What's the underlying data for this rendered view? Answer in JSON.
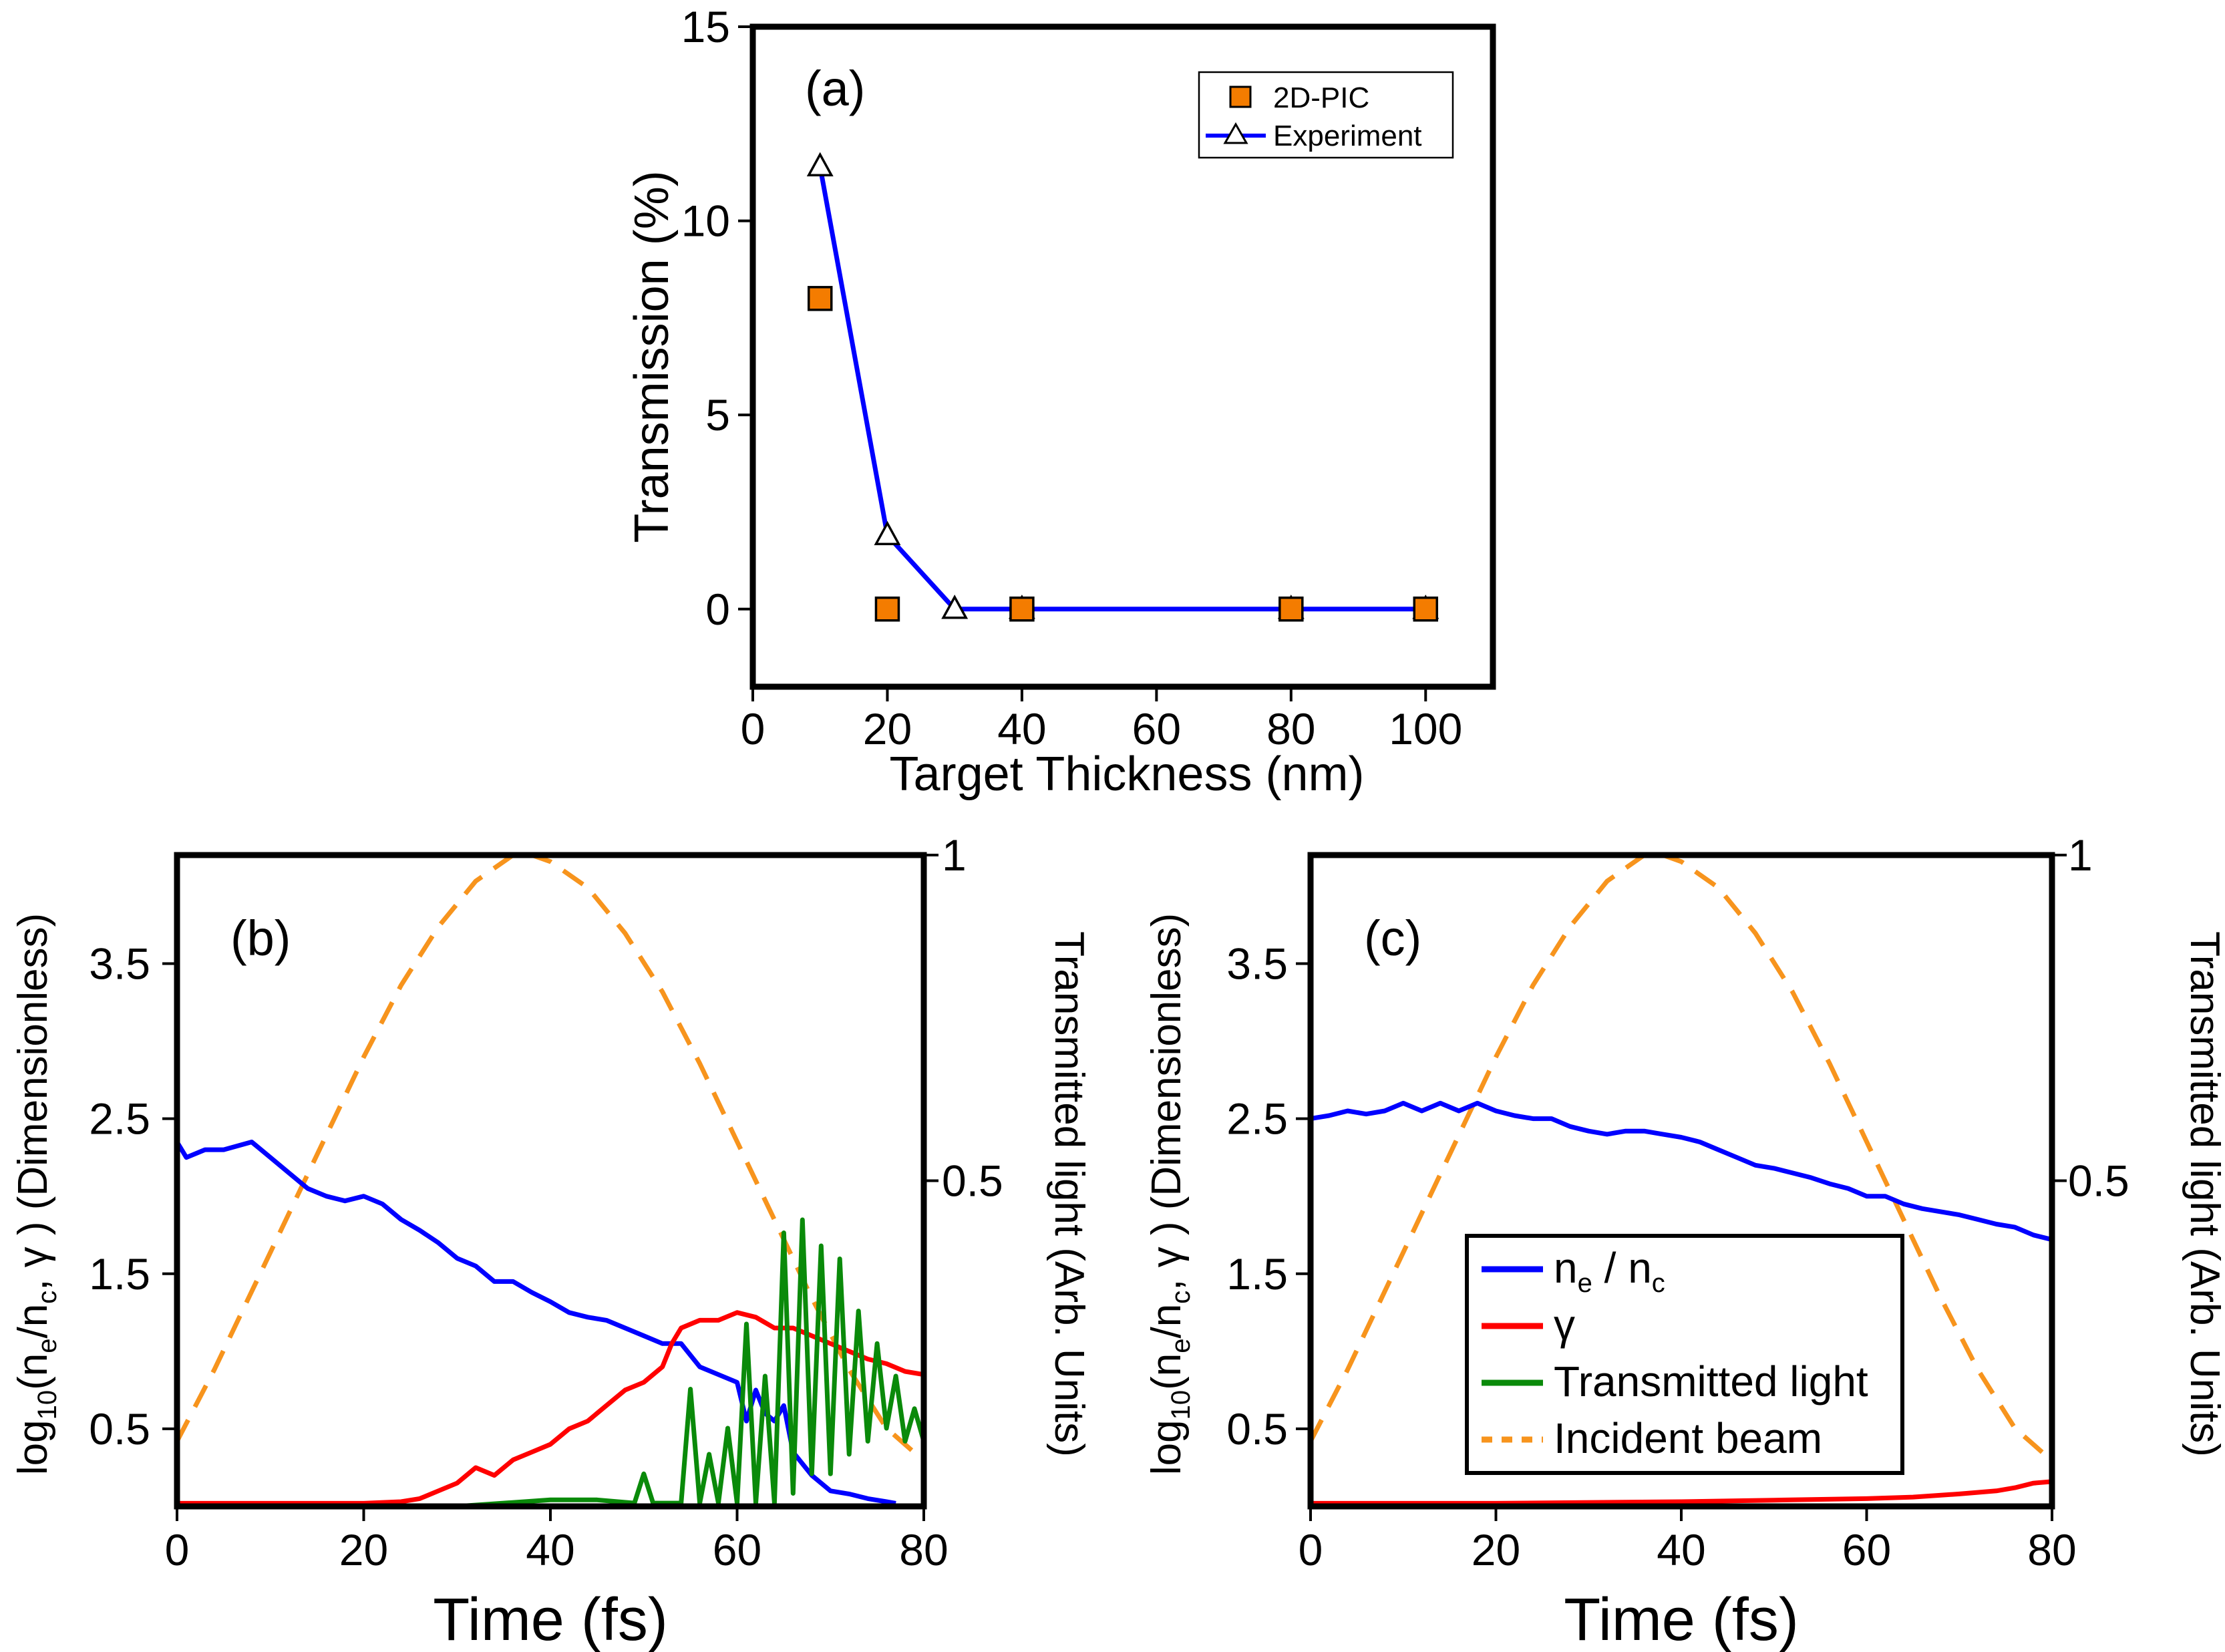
{
  "colors": {
    "frame": "#000000",
    "blue": "#0000ff",
    "red": "#ff0000",
    "green": "#0a8a0a",
    "orange": "#f7941d",
    "marker_fill": "#f47c00"
  },
  "chart_data": [
    {
      "id": "a",
      "type": "line",
      "panel_label": "(a)",
      "xlabel": "Target Thickness (nm)",
      "ylabel": "Transmission (%)",
      "xlim": [
        0,
        110
      ],
      "ylim": [
        -2,
        15
      ],
      "xticks": [
        0,
        20,
        40,
        60,
        80,
        100
      ],
      "yticks": [
        0,
        5,
        10,
        15
      ],
      "legend_position": "top-right",
      "series": [
        {
          "name": "2D-PIC",
          "style": "markers-square",
          "x": [
            10,
            20,
            40,
            80,
            100
          ],
          "y": [
            8,
            0,
            0,
            0,
            0
          ]
        },
        {
          "name": "Experiment",
          "style": "line-triangles",
          "x": [
            10,
            20,
            30,
            40,
            80,
            100
          ],
          "y": [
            11.4,
            1.9,
            0,
            0,
            0,
            0
          ]
        }
      ]
    },
    {
      "id": "b",
      "type": "line",
      "panel_label": "(b)",
      "xlabel": "Time (fs)",
      "ylabel_left": "log10(ne/nc, γ) (Dimensionless)",
      "ylabel_right": "Transmitted light (Arb. Units)",
      "xlim": [
        0,
        80
      ],
      "ylim_left": [
        0,
        4.2
      ],
      "ylim_right": [
        0,
        1
      ],
      "xticks": [
        0,
        20,
        40,
        60,
        80
      ],
      "yticks_left": [
        0.5,
        1.5,
        2.5,
        3.5
      ],
      "yticks_right": [
        0.5,
        1
      ],
      "series": [
        {
          "name": "ne / nc",
          "axis": "left",
          "x": [
            0,
            1,
            3,
            5,
            8,
            10,
            12,
            14,
            16,
            18,
            20,
            22,
            24,
            26,
            28,
            30,
            32,
            34,
            36,
            38,
            40,
            42,
            44,
            46,
            48,
            50,
            52,
            54,
            56,
            58,
            60,
            61,
            62,
            63,
            64,
            65,
            66,
            68,
            70,
            72,
            74,
            76,
            77
          ],
          "y": [
            2.35,
            2.25,
            2.3,
            2.3,
            2.35,
            2.25,
            2.15,
            2.05,
            2.0,
            1.97,
            2.0,
            1.95,
            1.85,
            1.78,
            1.7,
            1.6,
            1.55,
            1.45,
            1.45,
            1.38,
            1.32,
            1.25,
            1.22,
            1.2,
            1.15,
            1.1,
            1.05,
            1.05,
            0.9,
            0.85,
            0.8,
            0.55,
            0.75,
            0.6,
            0.55,
            0.65,
            0.35,
            0.2,
            0.1,
            0.08,
            0.05,
            0.03,
            0.02
          ]
        },
        {
          "name": "γ",
          "axis": "left",
          "x": [
            0,
            10,
            20,
            24,
            26,
            28,
            30,
            32,
            34,
            36,
            38,
            40,
            42,
            44,
            46,
            48,
            50,
            52,
            53,
            54,
            56,
            58,
            60,
            62,
            64,
            66,
            68,
            70,
            72,
            74,
            76,
            78,
            80
          ],
          "y": [
            0.02,
            0.02,
            0.02,
            0.03,
            0.05,
            0.1,
            0.15,
            0.25,
            0.2,
            0.3,
            0.35,
            0.4,
            0.5,
            0.55,
            0.65,
            0.75,
            0.8,
            0.9,
            1.05,
            1.15,
            1.2,
            1.2,
            1.25,
            1.22,
            1.15,
            1.15,
            1.1,
            1.05,
            1.0,
            0.95,
            0.92,
            0.87,
            0.85
          ]
        },
        {
          "name": "Transmitted light",
          "axis": "right",
          "x": [
            0,
            30,
            40,
            45,
            49,
            50,
            51,
            54,
            55,
            56,
            57,
            58,
            59,
            60,
            61,
            62,
            63,
            64,
            65,
            66,
            67,
            68,
            69,
            70,
            71,
            72,
            73,
            74,
            75,
            76,
            77,
            78,
            79,
            80
          ],
          "y": [
            0.0,
            0.0,
            0.01,
            0.01,
            0.005,
            0.05,
            0.005,
            0.005,
            0.18,
            0.005,
            0.08,
            0.005,
            0.12,
            0.005,
            0.28,
            0.005,
            0.2,
            0.005,
            0.42,
            0.02,
            0.44,
            0.05,
            0.4,
            0.05,
            0.38,
            0.08,
            0.3,
            0.1,
            0.25,
            0.12,
            0.2,
            0.1,
            0.15,
            0.1
          ]
        },
        {
          "name": "Incident beam",
          "axis": "right",
          "style": "dashed",
          "x": [
            0,
            4,
            8,
            12,
            16,
            20,
            24,
            28,
            32,
            36,
            38,
            40,
            44,
            48,
            52,
            56,
            60,
            64,
            68,
            72,
            76,
            80
          ],
          "y": [
            0.1,
            0.21,
            0.33,
            0.45,
            0.57,
            0.69,
            0.8,
            0.89,
            0.96,
            1.0,
            1.0,
            0.99,
            0.95,
            0.88,
            0.79,
            0.68,
            0.56,
            0.44,
            0.32,
            0.21,
            0.12,
            0.07
          ]
        }
      ]
    },
    {
      "id": "c",
      "type": "line",
      "panel_label": "(c)",
      "xlabel": "Time (fs)",
      "ylabel_left": "log10(ne/nc, γ) (Dimensionless)",
      "ylabel_right": "Transmitted light (Arb. Units)",
      "xlim": [
        0,
        80
      ],
      "ylim_left": [
        0,
        4.2
      ],
      "ylim_right": [
        0,
        1
      ],
      "xticks": [
        0,
        20,
        40,
        60,
        80
      ],
      "yticks_left": [
        0.5,
        1.5,
        2.5,
        3.5
      ],
      "yticks_right": [
        0.5,
        1
      ],
      "legend_position": "bottom-right",
      "series": [
        {
          "name": "ne / nc",
          "axis": "left",
          "x": [
            0,
            2,
            4,
            6,
            8,
            10,
            12,
            14,
            16,
            18,
            20,
            22,
            24,
            26,
            28,
            30,
            32,
            34,
            36,
            38,
            40,
            42,
            44,
            46,
            48,
            50,
            52,
            54,
            56,
            58,
            60,
            62,
            64,
            66,
            68,
            70,
            72,
            74,
            76,
            78,
            80
          ],
          "y": [
            2.5,
            2.52,
            2.55,
            2.53,
            2.55,
            2.6,
            2.55,
            2.6,
            2.55,
            2.6,
            2.55,
            2.52,
            2.5,
            2.5,
            2.45,
            2.42,
            2.4,
            2.42,
            2.42,
            2.4,
            2.38,
            2.35,
            2.3,
            2.25,
            2.2,
            2.18,
            2.15,
            2.12,
            2.08,
            2.05,
            2.0,
            2.0,
            1.95,
            1.92,
            1.9,
            1.88,
            1.85,
            1.82,
            1.8,
            1.75,
            1.72
          ]
        },
        {
          "name": "γ",
          "axis": "left",
          "x": [
            0,
            20,
            40,
            50,
            60,
            65,
            70,
            74,
            76,
            78,
            80
          ],
          "y": [
            0.02,
            0.02,
            0.03,
            0.04,
            0.05,
            0.06,
            0.08,
            0.1,
            0.12,
            0.15,
            0.16
          ]
        },
        {
          "name": "Transmitted light",
          "axis": "right",
          "x": [
            0,
            80
          ],
          "y": [
            0.0,
            0.0
          ]
        },
        {
          "name": "Incident beam",
          "axis": "right",
          "style": "dashed",
          "x": [
            0,
            4,
            8,
            12,
            16,
            20,
            24,
            28,
            32,
            36,
            38,
            40,
            44,
            48,
            52,
            56,
            60,
            64,
            68,
            72,
            76,
            80
          ],
          "y": [
            0.1,
            0.21,
            0.33,
            0.45,
            0.57,
            0.69,
            0.8,
            0.89,
            0.96,
            1.0,
            1.0,
            0.99,
            0.95,
            0.88,
            0.79,
            0.68,
            0.56,
            0.44,
            0.32,
            0.21,
            0.12,
            0.07
          ]
        }
      ],
      "legend_entries": [
        {
          "series": "ne / nc",
          "main": "n",
          "sub1": "e",
          "mid": " / n",
          "sub2": "c"
        },
        {
          "series": "γ",
          "main": "γ"
        },
        {
          "series": "Transmitted light",
          "main": "Transmitted light"
        },
        {
          "series": "Incident beam",
          "main": "Incident beam"
        }
      ]
    }
  ],
  "labels": {
    "ylabel_bc_prefix": "log",
    "ylabel_bc_sub10": "10",
    "ylabel_bc_open": "(n",
    "ylabel_bc_sub_e": "e",
    "ylabel_bc_mid": "/n",
    "ylabel_bc_sub_c": "c",
    "ylabel_bc_tail": ", γ ) (Dimensionless)"
  }
}
